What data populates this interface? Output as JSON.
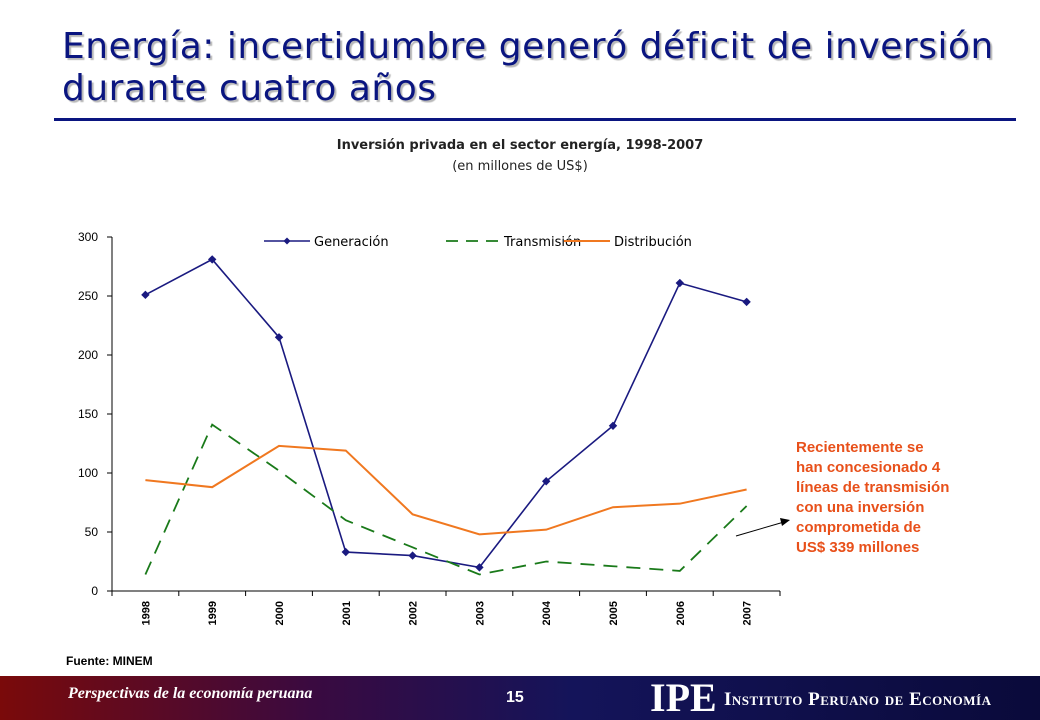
{
  "slide": {
    "title": "Energía: incertidumbre generó déficit de inversión durante cuatro años",
    "annotation_lines": [
      "Recientemente se",
      "han concesionado 4",
      "líneas de transmisión",
      "con una inversión",
      "comprometida de",
      "US$ 339 millones"
    ],
    "source": "Fuente: MINEM"
  },
  "footer": {
    "left_text": "Perspectivas de la economía peruana",
    "page_number": "15",
    "logo": "IPE",
    "institute": "Instituto Peruano de Economía"
  },
  "colors": {
    "title": "#0a1580",
    "generacion": "#1a1a80",
    "transmision": "#1a7a1a",
    "distribucion": "#f07820",
    "annotation": "#e8501a"
  },
  "chart_data": {
    "type": "line",
    "title": "Inversión privada en el sector energía, 1998-2007",
    "subtitle": "(en millones de US$)",
    "categories": [
      "1998",
      "1999",
      "2000",
      "2001",
      "2002",
      "2003",
      "2004",
      "2005",
      "2006",
      "2007"
    ],
    "series": [
      {
        "name": "Generación",
        "style": "solid-with-diamond-markers",
        "values": [
          251,
          281,
          215,
          33,
          30,
          20,
          93,
          140,
          261,
          245
        ]
      },
      {
        "name": "Transmisión",
        "style": "dashed",
        "values": [
          14,
          141,
          102,
          60,
          37,
          14,
          25,
          21,
          17,
          72
        ]
      },
      {
        "name": "Distribución",
        "style": "solid",
        "values": [
          94,
          88,
          123,
          119,
          65,
          48,
          52,
          71,
          74,
          86
        ]
      }
    ],
    "y_ticks": [
      "0",
      "50",
      "100",
      "150",
      "200",
      "250",
      "300"
    ],
    "ylim": [
      0,
      300
    ],
    "grid": false,
    "legend_position": "top-center"
  }
}
